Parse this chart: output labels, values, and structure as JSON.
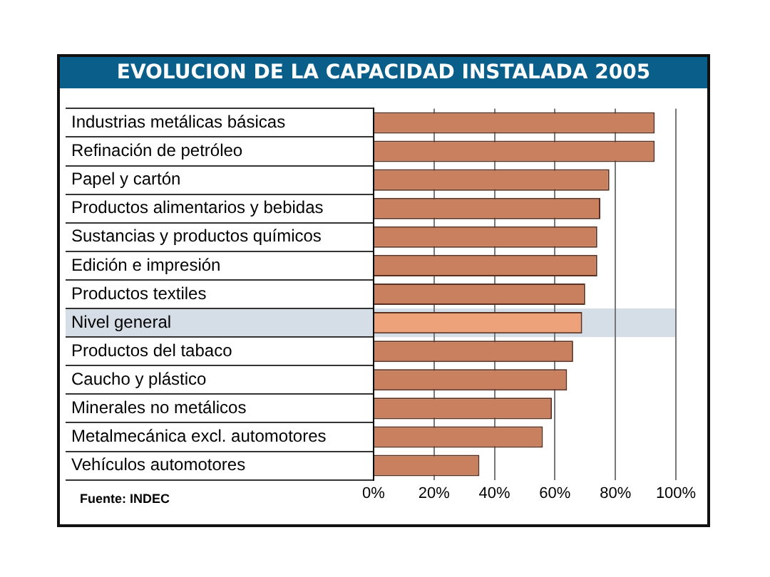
{
  "chart_data": {
    "type": "bar",
    "orientation": "horizontal",
    "title": "EVOLUCION DE LA CAPACIDAD INSTALADA 2005",
    "categories": [
      "Industrias metálicas básicas",
      "Refinación de petróleo",
      "Papel y cartón",
      "Productos alimentarios y bebidas",
      "Sustancias y productos químicos",
      "Edición e impresión",
      "Productos textiles",
      "Nivel general",
      "Productos del tabaco",
      "Caucho y plástico",
      "Minerales no metálicos",
      "Metalmecánica excl. automotores",
      "Vehículos automotores"
    ],
    "values": [
      93,
      93,
      78,
      75,
      74,
      74,
      70,
      69,
      66,
      64,
      59,
      56,
      35
    ],
    "colors": [
      "#c9805f",
      "#c9805f",
      "#c9805f",
      "#c9805f",
      "#c9805f",
      "#c9805f",
      "#c9805f",
      "#eea27a",
      "#c9805f",
      "#c9805f",
      "#c9805f",
      "#c9805f",
      "#c9805f"
    ],
    "xlim": [
      0,
      100
    ],
    "xticks": [
      {
        "value": 0,
        "label": "0%"
      },
      {
        "value": 20,
        "label": "20%"
      },
      {
        "value": 40,
        "label": "40%"
      },
      {
        "value": 60,
        "label": "60%"
      },
      {
        "value": 80,
        "label": "80%"
      },
      {
        "value": 100,
        "label": "100%"
      }
    ],
    "grid": "x",
    "legend": false,
    "bands": [
      {
        "axis": "y",
        "from": "Nivel general",
        "to": "Nivel general",
        "color": "#d5dee6"
      }
    ],
    "annotations": [
      "Fuente: INDEC"
    ]
  }
}
